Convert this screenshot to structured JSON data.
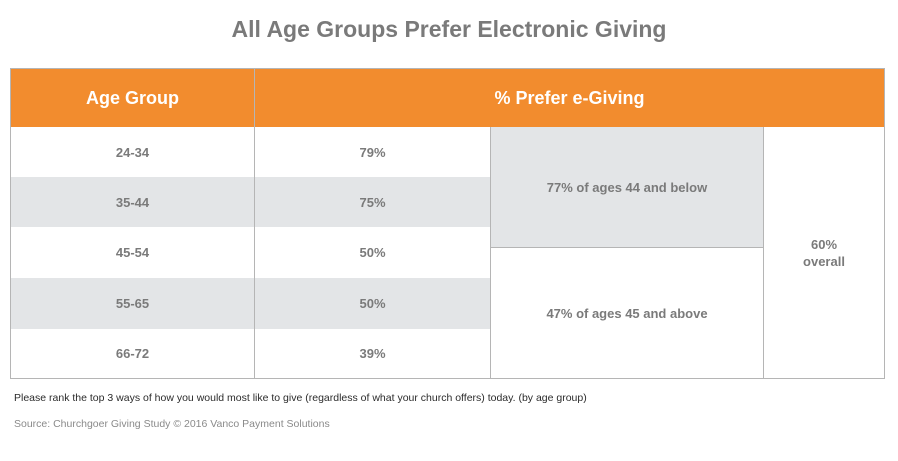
{
  "chart_data": {
    "type": "table",
    "title": "All Age Groups Prefer Electronic Giving",
    "columns": [
      "Age Group",
      "% Prefer e-Giving"
    ],
    "rows": [
      {
        "age": "24-34",
        "value": "79%"
      },
      {
        "age": "35-44",
        "value": "75%"
      },
      {
        "age": "45-54",
        "value": "50%"
      },
      {
        "age": "55-65",
        "value": "50%"
      },
      {
        "age": "66-72",
        "value": "39%"
      }
    ],
    "groups": [
      {
        "label": "77% of ages 44 and below",
        "value": 77
      },
      {
        "label": "47% of ages 45 and above",
        "value": 47
      }
    ],
    "overall": {
      "value": "60%",
      "label": "overall"
    }
  },
  "footnote": "Please rank the top 3 ways of how you would most like to give (regardless of what your church offers) today. (by age group)",
  "source": "Source: Churchgoer Giving Study © 2016 Vanco Payment Solutions",
  "colors": {
    "header": "#f28c2e",
    "shade": "#e3e5e7",
    "text": "#7a7a7a"
  }
}
